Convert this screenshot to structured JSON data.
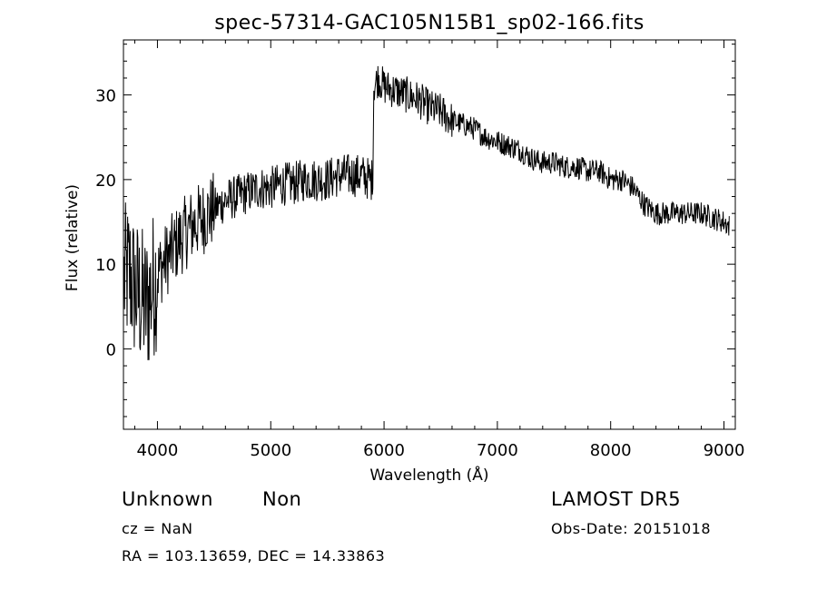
{
  "chart_data": {
    "type": "line",
    "title": "spec-57314-GAC105N15B1_sp02-166.fits",
    "xlabel": "Wavelength (Å)",
    "ylabel": "Flux (relative)",
    "xlim": [
      3700,
      9100
    ],
    "ylim": [
      -9.5,
      36.5
    ],
    "xticks": [
      4000,
      5000,
      6000,
      7000,
      8000,
      9000
    ],
    "yticks": [
      0,
      10,
      20,
      30
    ],
    "grid": false,
    "series": [
      {
        "x": [
          3700,
          3750,
          3800,
          3850,
          3900,
          3950,
          4000,
          4100,
          4200,
          4300,
          4400,
          4500,
          4600,
          4700,
          4800,
          4900,
          5000,
          5100,
          5200,
          5300,
          5400,
          5500,
          5600,
          5700,
          5800,
          5880,
          5900,
          5910,
          5950,
          6000,
          6100,
          6200,
          6300,
          6400,
          6500,
          6600,
          6700,
          6800,
          6900,
          7000,
          7100,
          7200,
          7300,
          7400,
          7500,
          7600,
          7700,
          7800,
          7900,
          8000,
          8100,
          8200,
          8300,
          8400,
          8500,
          8600,
          8700,
          8800,
          8900,
          9000,
          9050
        ],
        "y": [
          8,
          9,
          7,
          6,
          5,
          7,
          9,
          11,
          13,
          14.5,
          15.5,
          16.5,
          17.5,
          18,
          18.5,
          19,
          19,
          19.5,
          19.5,
          20,
          20,
          20,
          20.5,
          20.5,
          20.5,
          20,
          20,
          31,
          32,
          31,
          30.5,
          30,
          29.5,
          28.5,
          28,
          27,
          26.5,
          26,
          25,
          24.5,
          24,
          23.5,
          22.5,
          22,
          22,
          21.5,
          21.5,
          21,
          21,
          20,
          20,
          19,
          17,
          16,
          16,
          16,
          16,
          16,
          15.5,
          15,
          14.5
        ]
      }
    ]
  },
  "info": {
    "class": "Unknown",
    "subclass": "Non",
    "survey": "LAMOST DR5",
    "cz": "cz = NaN",
    "obs_date": "Obs-Date: 20151018",
    "coords": "RA = 103.13659, DEC =  14.33863"
  }
}
